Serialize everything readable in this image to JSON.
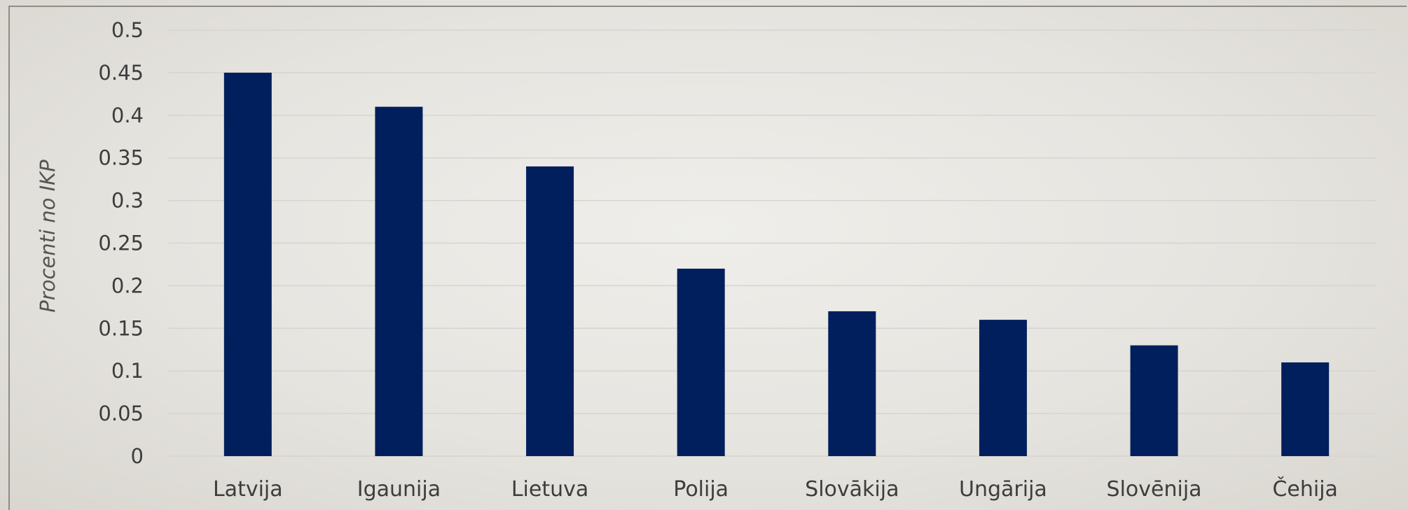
{
  "chart_data": {
    "type": "bar",
    "categories": [
      "Latvija",
      "Igaunija",
      "Lietuva",
      "Polija",
      "Slovākija",
      "Ungārija",
      "Slovēnija",
      "Čehija"
    ],
    "values": [
      0.45,
      0.41,
      0.34,
      0.22,
      0.17,
      0.16,
      0.13,
      0.11
    ],
    "ylabel": "Procenti no IKP",
    "xlabel": "",
    "ylim": [
      0,
      0.5
    ],
    "yticks": [
      "0",
      "0.05",
      "0.1",
      "0.15",
      "0.2",
      "0.25",
      "0.3",
      "0.35",
      "0.4",
      "0.45",
      "0.5"
    ],
    "grid": true,
    "bar_color": "#001f5c",
    "grid_color": "#d6d4cf"
  }
}
